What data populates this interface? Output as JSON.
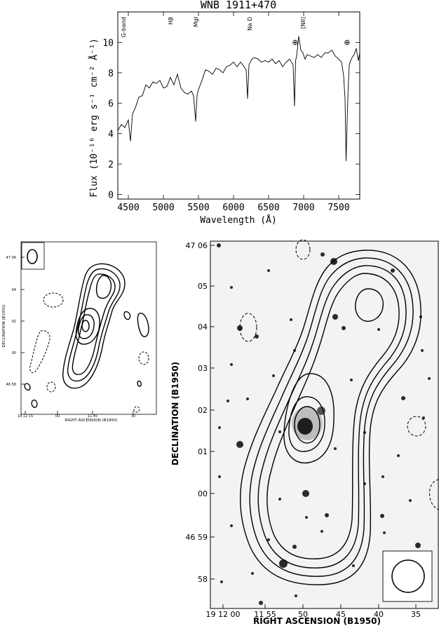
{
  "chart_data": [
    {
      "type": "line",
      "title": "WNB 1911+470",
      "xlabel": "Wavelength (Å)",
      "ylabel": "Flux (10⁻¹⁶ erg s⁻¹ cm⁻² Å⁻¹)",
      "xlim": [
        4350,
        7800
      ],
      "ylim": [
        -0.3,
        12
      ],
      "xticks": [
        4500,
        5000,
        5500,
        6000,
        6500,
        7000,
        7500
      ],
      "xtick_labels": [
        "4500",
        "5000",
        "5500",
        "6000",
        "6500",
        "7000",
        "7500"
      ],
      "yticks": [
        0,
        2,
        4,
        6,
        8,
        10
      ],
      "ytick_labels": [
        "0",
        "2",
        "4",
        "6",
        "8",
        "10"
      ],
      "grid": false,
      "line_labels": [
        {
          "text": "G-band",
          "x": 4300
        },
        {
          "text": "Hβ",
          "x": 5100
        },
        {
          "text": "MgI",
          "x": 5460
        },
        {
          "text": "Na D",
          "x": 6230
        },
        {
          "text": "⊕",
          "x": 6880
        },
        {
          "text": "[NII]",
          "x": 6990
        },
        {
          "text": "⊕",
          "x": 7620
        }
      ],
      "series": [
        {
          "x": [
            4350,
            4400,
            4450,
            4500,
            4530,
            4560,
            4600,
            4650,
            4700,
            4750,
            4800,
            4850,
            4900,
            4950,
            5000,
            5050,
            5100,
            5150,
            5200,
            5250,
            5300,
            5350,
            5400,
            5430,
            5460,
            5480,
            5500,
            5550,
            5600,
            5650,
            5700,
            5750,
            5800,
            5850,
            5900,
            5950,
            6000,
            6050,
            6100,
            6150,
            6180,
            6200,
            6220,
            6240,
            6260,
            6300,
            6350,
            6400,
            6450,
            6500,
            6550,
            6600,
            6650,
            6700,
            6750,
            6800,
            6850,
            6870,
            6885,
            6900,
            6930,
            6960,
            6990,
            7020,
            7050,
            7100,
            7150,
            7200,
            7250,
            7300,
            7350,
            7400,
            7450,
            7500,
            7540,
            7570,
            7590,
            7605,
            7620,
            7635,
            7650,
            7670,
            7690,
            7720,
            7750,
            7780,
            7800
          ],
          "y": [
            4.2,
            4.6,
            4.4,
            4.9,
            3.5,
            5.3,
            5.7,
            6.4,
            6.5,
            7.2,
            7.0,
            7.4,
            7.3,
            7.5,
            7.0,
            7.1,
            7.7,
            7.2,
            7.9,
            7.0,
            6.7,
            6.6,
            6.8,
            6.5,
            4.8,
            6.5,
            6.9,
            7.5,
            8.2,
            8.1,
            7.9,
            8.3,
            8.2,
            8.0,
            8.4,
            8.5,
            8.7,
            8.4,
            8.7,
            8.4,
            8.2,
            6.3,
            8.5,
            8.7,
            8.9,
            9.0,
            8.9,
            8.7,
            8.8,
            8.7,
            8.9,
            8.6,
            8.8,
            8.4,
            8.7,
            8.9,
            8.5,
            5.8,
            8.8,
            9.1,
            10.4,
            9.5,
            9.3,
            8.9,
            9.2,
            9.1,
            9.0,
            9.2,
            9.0,
            9.3,
            9.3,
            9.5,
            9.1,
            8.9,
            8.7,
            7.8,
            6.3,
            2.2,
            4.8,
            7.0,
            8.5,
            8.8,
            9.0,
            9.2,
            9.6,
            8.8,
            9.3
          ]
        }
      ]
    },
    {
      "type": "contour",
      "panel": "left",
      "xlabel": "RIGHT ASCENSION (B1950)",
      "ylabel": "DECLINATION (B1950)",
      "xtick_labels": [
        "19 12 15",
        "00",
        "11 45",
        "30"
      ],
      "ytick_labels": [
        "47 06",
        "04",
        "02",
        "00",
        "46 58"
      ]
    },
    {
      "type": "contour",
      "panel": "right",
      "xlabel": "RIGHT ASCENSION (B1950)",
      "ylabel": "DECLINATION (B1950)",
      "xtick_labels": [
        "19 12 00",
        "11 55",
        "50",
        "45",
        "40",
        "35"
      ],
      "ytick_labels": [
        "47 06",
        "05",
        "04",
        "03",
        "02",
        "01",
        "00",
        "46 59",
        "58"
      ]
    }
  ]
}
